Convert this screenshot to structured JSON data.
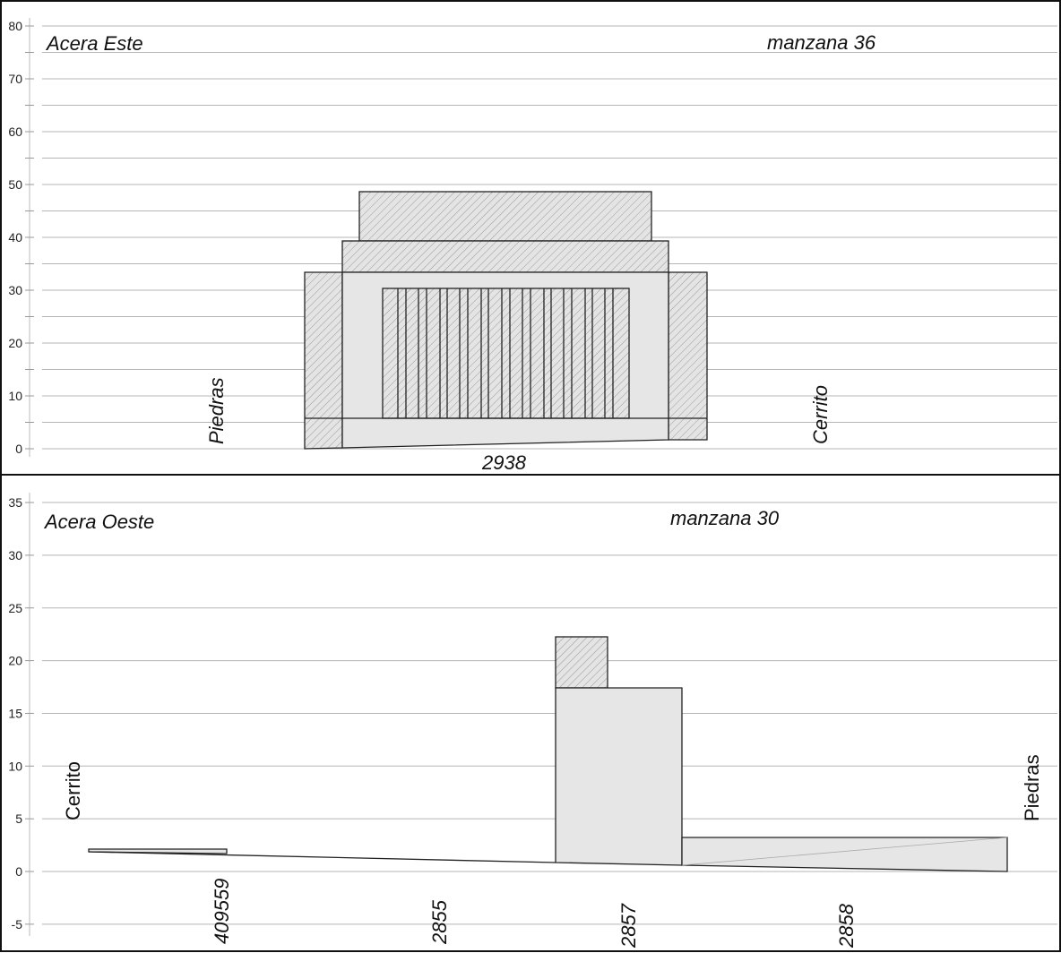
{
  "top_panel": {
    "title": "Acera Este",
    "block": "manzana 36",
    "left_street": "Piedras",
    "right_street": "Cerrito",
    "parcels": [
      "2938"
    ],
    "y_ticks": [
      0,
      10,
      20,
      30,
      40,
      50,
      60,
      70,
      80
    ]
  },
  "bottom_panel": {
    "title": "Acera Oeste",
    "block": "manzana 30",
    "left_street": "Cerrito",
    "right_street": "Piedras",
    "parcels": [
      "409559",
      "2855",
      "2857",
      "2858"
    ],
    "y_ticks": [
      -5,
      0,
      5,
      10,
      15,
      20,
      25,
      30,
      35
    ]
  },
  "colors": {
    "fill": "#e6e6e6",
    "hatch": "#9a9a9a",
    "grid": "#b5b5b5",
    "outline": "#222222"
  }
}
